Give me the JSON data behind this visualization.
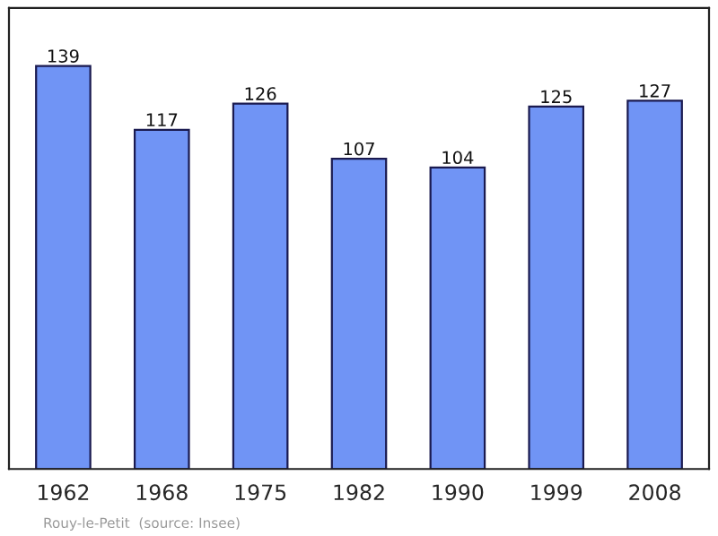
{
  "chart_data": {
    "type": "bar",
    "categories": [
      "1962",
      "1968",
      "1975",
      "1982",
      "1990",
      "1999",
      "2008"
    ],
    "values": [
      139,
      117,
      126,
      107,
      104,
      125,
      127
    ],
    "color": "#7094f5",
    "data_labels": true,
    "ylim": [
      0,
      159
    ],
    "tick_labels": "x",
    "grid": false,
    "annotations": [
      "Rouy-le-Petit  (source: Insee)"
    ]
  }
}
